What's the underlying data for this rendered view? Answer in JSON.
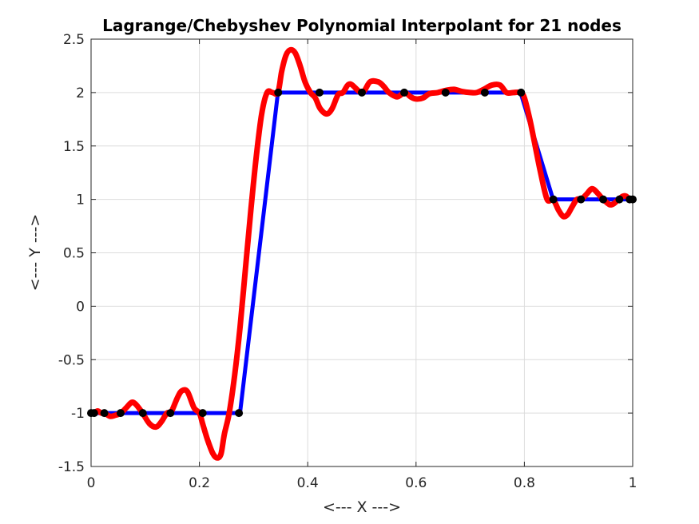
{
  "chart_data": {
    "type": "line",
    "title": "Lagrange/Chebyshev Polynomial Interpolant for 21 nodes",
    "xlabel": "<--- X --->",
    "ylabel": "<--- Y --->",
    "xlim": [
      0,
      1
    ],
    "ylim": [
      -1.5,
      2.5
    ],
    "xticks": [
      0,
      0.2,
      0.4,
      0.6,
      0.8,
      1
    ],
    "xtick_labels": [
      "0",
      "0.2",
      "0.4",
      "0.6",
      "0.8",
      "1"
    ],
    "yticks": [
      -1.5,
      -1,
      -0.5,
      0,
      0.5,
      1,
      1.5,
      2,
      2.5
    ],
    "ytick_labels": [
      "-1.5",
      "-1",
      "-0.5",
      "0",
      "0.5",
      "1",
      "1.5",
      "2",
      "2.5"
    ],
    "grid": true,
    "series": [
      {
        "role": "step function",
        "color": "#0000ff",
        "x": [
          0,
          0.275,
          0.345,
          0.793,
          0.853,
          1
        ],
        "y": [
          -1,
          -1,
          2,
          2,
          1,
          1
        ]
      },
      {
        "role": "interpolant",
        "color": "#ff0000",
        "x": [
          0,
          0.0056,
          0.012,
          0.019,
          0.025,
          0.035,
          0.045,
          0.055,
          0.065,
          0.075,
          0.083,
          0.095,
          0.108,
          0.12,
          0.13,
          0.14,
          0.147,
          0.16,
          0.168,
          0.178,
          0.19,
          0.2,
          0.206,
          0.215,
          0.225,
          0.233,
          0.24,
          0.246,
          0.255,
          0.265,
          0.275,
          0.285,
          0.295,
          0.305,
          0.315,
          0.325,
          0.335,
          0.345,
          0.352,
          0.36,
          0.368,
          0.377,
          0.386,
          0.395,
          0.405,
          0.414,
          0.423,
          0.435,
          0.445,
          0.456,
          0.465,
          0.478,
          0.5,
          0.515,
          0.53,
          0.54,
          0.55,
          0.565,
          0.579,
          0.59,
          0.6,
          0.613,
          0.625,
          0.64,
          0.655,
          0.67,
          0.685,
          0.7,
          0.712,
          0.725,
          0.74,
          0.755,
          0.767,
          0.78,
          0.793,
          0.8,
          0.81,
          0.82,
          0.83,
          0.842,
          0.853,
          0.863,
          0.872,
          0.88,
          0.888,
          0.897,
          0.905,
          0.915,
          0.925,
          0.935,
          0.945,
          0.95,
          0.958,
          0.965,
          0.974,
          0.982,
          0.988,
          0.994,
          1
        ],
        "y": [
          -1,
          -1.0,
          -0.98,
          -1.0,
          -1.0,
          -1.03,
          -1.02,
          -1.0,
          -0.95,
          -0.9,
          -0.92,
          -1.0,
          -1.1,
          -1.13,
          -1.08,
          -1.0,
          -1.0,
          -0.85,
          -0.79,
          -0.8,
          -0.95,
          -1.0,
          -1.1,
          -1.25,
          -1.38,
          -1.42,
          -1.38,
          -1.2,
          -1.0,
          -0.65,
          -0.2,
          0.35,
          0.9,
          1.4,
          1.8,
          2.0,
          2.0,
          2.0,
          2.2,
          2.35,
          2.4,
          2.37,
          2.25,
          2.1,
          2.0,
          1.95,
          1.85,
          1.8,
          1.85,
          1.98,
          2.0,
          2.08,
          2.0,
          2.1,
          2.1,
          2.06,
          2.0,
          1.96,
          2.0,
          1.96,
          1.94,
          1.95,
          1.99,
          2.0,
          2.02,
          2.03,
          2.01,
          2.0,
          2.0,
          2.03,
          2.07,
          2.07,
          2.0,
          2.0,
          2.0,
          1.95,
          1.75,
          1.5,
          1.25,
          1.0,
          1.0,
          0.9,
          0.84,
          0.86,
          0.93,
          1.0,
          1.0,
          1.05,
          1.1,
          1.06,
          1.0,
          0.98,
          0.95,
          0.96,
          1.0,
          1.03,
          1.03,
          1.0,
          1.0
        ]
      },
      {
        "role": "nodes",
        "color": "#000000",
        "x": [
          0,
          0.0056,
          0.0245,
          0.0545,
          0.0955,
          0.1465,
          0.2061,
          0.273,
          0.3455,
          0.4218,
          0.5,
          0.5782,
          0.6545,
          0.727,
          0.7939,
          0.8535,
          0.9045,
          0.9455,
          0.9755,
          0.9944,
          1
        ],
        "y": [
          -1,
          -1,
          -1,
          -1,
          -1,
          -1,
          -1,
          -1,
          2,
          2,
          2,
          2,
          2,
          2,
          2,
          1,
          1,
          1,
          1,
          1,
          1
        ]
      }
    ]
  }
}
